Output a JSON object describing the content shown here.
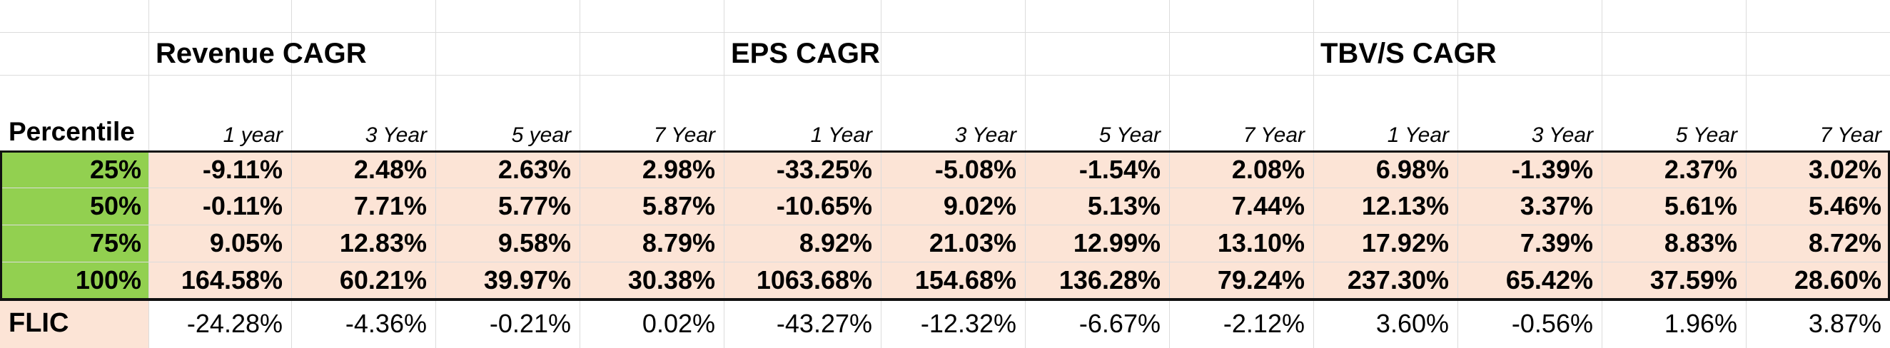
{
  "groups": {
    "revenue": "Revenue CAGR",
    "eps": "EPS CAGR",
    "tbv": "TBV/S CAGR"
  },
  "header": {
    "percentile_label": "Percentile",
    "columns": [
      "1 year",
      "3 Year",
      "5 year",
      "7 Year",
      "1 Year",
      "3 Year",
      "5 Year",
      "7 Year",
      "1 Year",
      "3 Year",
      "5 Year",
      "7 Year"
    ]
  },
  "rows": [
    {
      "label": "25%",
      "values": [
        "-9.11%",
        "2.48%",
        "2.63%",
        "2.98%",
        "-33.25%",
        "-5.08%",
        "-1.54%",
        "2.08%",
        "6.98%",
        "-1.39%",
        "2.37%",
        "3.02%"
      ]
    },
    {
      "label": "50%",
      "values": [
        "-0.11%",
        "7.71%",
        "5.77%",
        "5.87%",
        "-10.65%",
        "9.02%",
        "5.13%",
        "7.44%",
        "12.13%",
        "3.37%",
        "5.61%",
        "5.46%"
      ]
    },
    {
      "label": "75%",
      "values": [
        "9.05%",
        "12.83%",
        "9.58%",
        "8.79%",
        "8.92%",
        "21.03%",
        "12.99%",
        "13.10%",
        "17.92%",
        "7.39%",
        "8.83%",
        "8.72%"
      ]
    },
    {
      "label": "100%",
      "values": [
        "164.58%",
        "60.21%",
        "39.97%",
        "30.38%",
        "1063.68%",
        "154.68%",
        "136.28%",
        "79.24%",
        "237.30%",
        "65.42%",
        "37.59%",
        "28.60%"
      ]
    }
  ],
  "flic": {
    "label": "FLIC",
    "values": [
      "-24.28%",
      "-4.36%",
      "-0.21%",
      "0.02%",
      "-43.27%",
      "-12.32%",
      "-6.67%",
      "-2.12%",
      "3.60%",
      "-0.56%",
      "1.96%",
      "3.87%"
    ]
  },
  "colors": {
    "percentile_fill": "#92d050",
    "value_fill": "#fce4d6",
    "gridline": "#dcdcdc",
    "border": "#111111"
  }
}
